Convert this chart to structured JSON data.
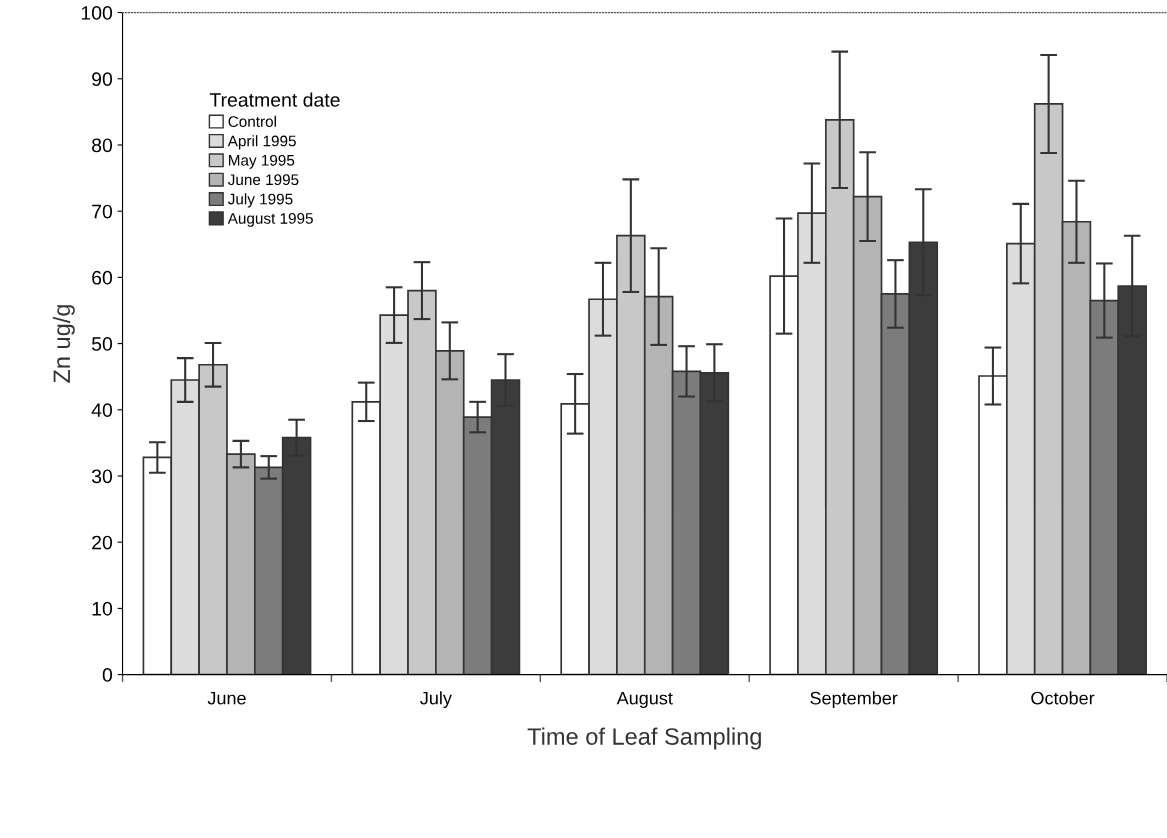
{
  "chart_data": {
    "type": "bar",
    "xlabel": "Time of Leaf Sampling",
    "ylabel": "Zn ug/g",
    "legend_title": "Treatment date",
    "legend": "top left",
    "ylim": [
      0,
      100
    ],
    "yticks": [
      0,
      10,
      20,
      30,
      40,
      50,
      60,
      70,
      80,
      90,
      100
    ],
    "grid": false,
    "categories": [
      "June",
      "July",
      "August",
      "September",
      "October"
    ],
    "series": [
      {
        "name": "Control",
        "color": "#ffffff",
        "values": [
          32.8,
          41.2,
          40.9,
          60.2,
          45.1
        ],
        "errors": [
          2.3,
          2.9,
          4.5,
          8.7,
          4.3
        ]
      },
      {
        "name": "April 1995",
        "color": "#dcdcdc",
        "values": [
          44.5,
          54.3,
          56.7,
          69.7,
          65.1
        ],
        "errors": [
          3.3,
          4.2,
          5.5,
          7.5,
          6.0
        ]
      },
      {
        "name": "May 1995",
        "color": "#c8c8c8",
        "values": [
          46.8,
          58.0,
          66.3,
          83.8,
          86.2
        ],
        "errors": [
          3.3,
          4.3,
          8.5,
          10.3,
          7.4
        ]
      },
      {
        "name": "June 1995",
        "color": "#b4b4b4",
        "values": [
          33.3,
          48.9,
          57.1,
          72.2,
          68.4
        ],
        "errors": [
          2.0,
          4.3,
          7.3,
          6.7,
          6.2
        ]
      },
      {
        "name": "July 1995",
        "color": "#7c7c7c",
        "values": [
          31.3,
          38.9,
          45.8,
          57.5,
          56.5
        ],
        "errors": [
          1.7,
          2.3,
          3.8,
          5.1,
          5.6
        ]
      },
      {
        "name": "August 1995",
        "color": "#3c3c3c",
        "values": [
          35.8,
          44.5,
          45.6,
          65.3,
          58.7
        ],
        "errors": [
          2.7,
          3.9,
          4.3,
          8.0,
          7.6
        ]
      }
    ]
  }
}
